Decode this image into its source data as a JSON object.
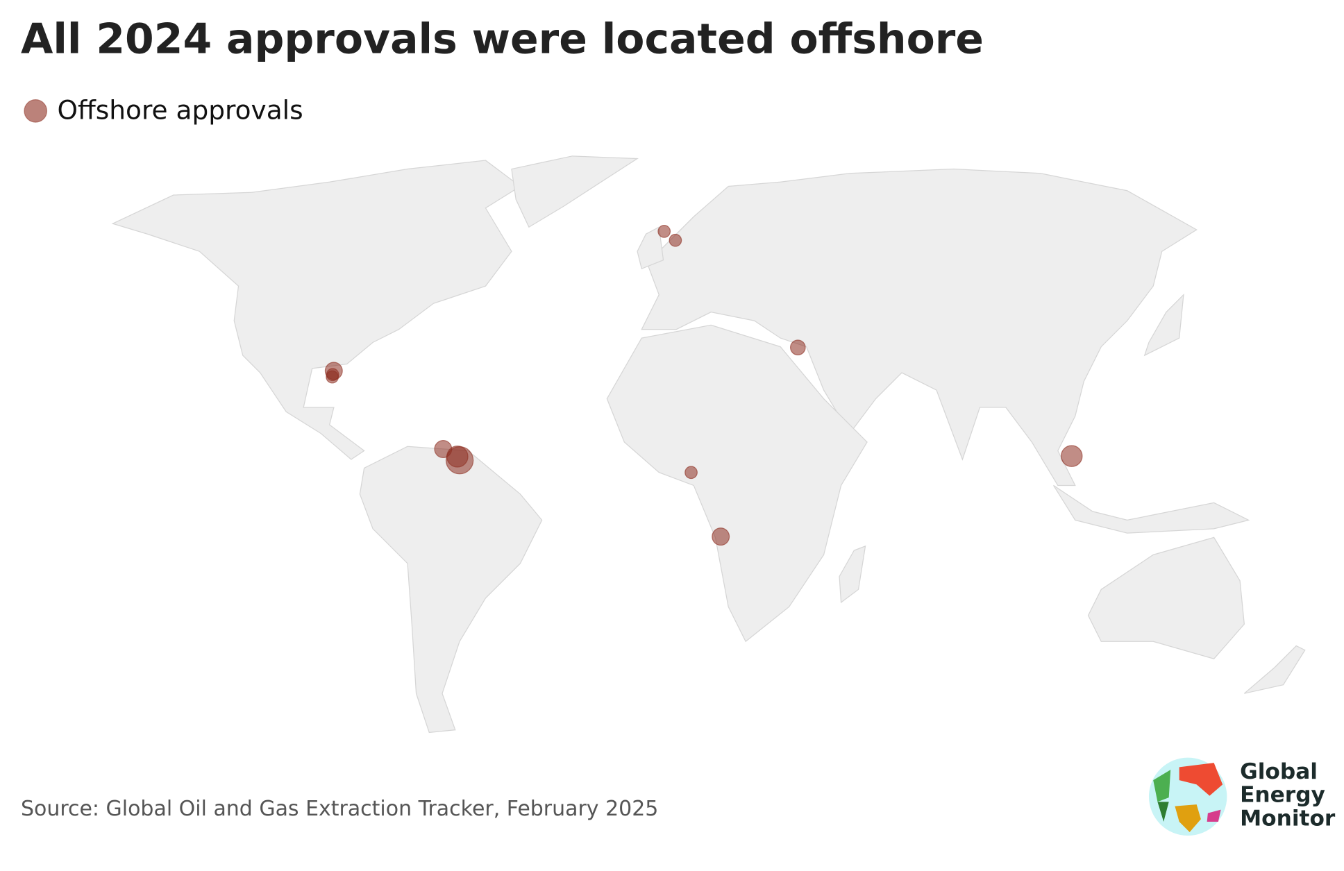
{
  "chart_data": {
    "type": "bubble_map",
    "title": "All 2024 approvals were located offshore",
    "series": [
      {
        "name": "Offshore approvals",
        "color": "#8e2f22",
        "points": [
          {
            "lon": -1.4,
            "lat": 58.9,
            "size": 1
          },
          {
            "lon": 1.6,
            "lat": 57.0,
            "size": 1
          },
          {
            "lon": -89.6,
            "lat": 29.1,
            "size": 2
          },
          {
            "lon": -90.0,
            "lat": 27.8,
            "size": 1
          },
          {
            "lon": -89.9,
            "lat": 28.3,
            "size": 1
          },
          {
            "lon": -60.4,
            "lat": 12.4,
            "size": 2
          },
          {
            "lon": -56.0,
            "lat": 10.0,
            "size": 5
          },
          {
            "lon": -56.6,
            "lat": 10.8,
            "size": 3
          },
          {
            "lon": 34.3,
            "lat": 34.1,
            "size": 1.5
          },
          {
            "lon": 5.8,
            "lat": 7.4,
            "size": 1
          },
          {
            "lon": 13.7,
            "lat": -6.3,
            "size": 2
          },
          {
            "lon": 107.4,
            "lat": 10.9,
            "size": 3
          }
        ]
      }
    ],
    "source": "Source: Global Oil and Gas Extraction Tracker, February 2025"
  },
  "logo": {
    "lines": [
      "Global",
      "Energy",
      "Monitor"
    ]
  }
}
